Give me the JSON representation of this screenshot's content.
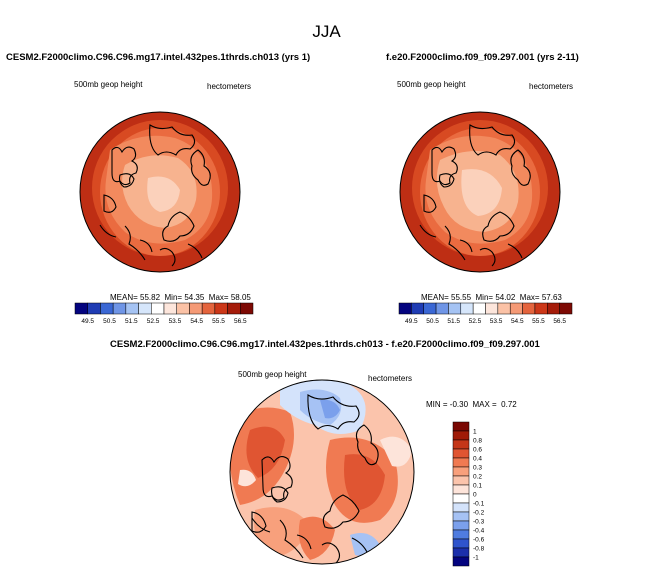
{
  "main_title": "JJA",
  "colors": {
    "abs_scale": [
      "#04047f",
      "#1f3cb4",
      "#3a67d4",
      "#6f95e6",
      "#a5c3f3",
      "#d6e6fb",
      "#ffffff",
      "#fde6dc",
      "#fbc2a6",
      "#f59a76",
      "#e4643d",
      "#cc3718",
      "#a51c0a",
      "#7d0a04"
    ],
    "diff_scale": [
      "#04047f",
      "#1b2fab",
      "#2f54cc",
      "#4f7ce0",
      "#7ba0ec",
      "#a6c2f4",
      "#d4e3fb",
      "#ffffff",
      "#fde4da",
      "#fbc4ac",
      "#f8a07c",
      "#f07a52",
      "#e05532",
      "#c43618",
      "#a01b08",
      "#7a0803"
    ]
  },
  "panels": [
    {
      "title": "CESM2.F2000climo.C96.C96.mg17.intel.432pes.1thrds.ch013 (yrs 1)",
      "left_label": "500mb geop height",
      "right_label": "hectometers",
      "stats": {
        "mean_label": "MEAN=",
        "mean": "55.82",
        "min_label": "Min=",
        "min": "54.35",
        "max_label": "Max=",
        "max": "58.05"
      },
      "colorbar_ticks": [
        "49.5",
        "50.5",
        "51.5",
        "52.5",
        "53.5",
        "54.5",
        "55.5",
        "56.5"
      ]
    },
    {
      "title": "f.e20.F2000climo.f09_f09.297.001 (yrs 2-11)",
      "left_label": "500mb geop height",
      "right_label": "hectometers",
      "stats": {
        "mean_label": "MEAN=",
        "mean": "55.55",
        "min_label": "Min=",
        "min": "54.02",
        "max_label": "Max=",
        "max": "57.63"
      },
      "colorbar_ticks": [
        "49.5",
        "50.5",
        "51.5",
        "52.5",
        "53.5",
        "54.5",
        "55.5",
        "56.5"
      ]
    },
    {
      "title": "CESM2.F2000climo.C96.C96.mg17.intel.432pes.1thrds.ch013 - f.e20.F2000climo.f09_f09.297.001",
      "left_label": "500mb geop height",
      "right_label": "hectometers",
      "stats": {
        "min_label": "MIN =",
        "min": "-0.30",
        "max_label": "MAX =",
        "max": "0.72"
      },
      "colorbar_ticks": [
        "1",
        "0.8",
        "0.6",
        "0.4",
        "0.3",
        "0.2",
        "0.1",
        "0",
        "-0.1",
        "-0.2",
        "-0.3",
        "-0.4",
        "-0.6",
        "-0.8",
        "-1"
      ]
    }
  ],
  "chart_data": [
    {
      "type": "heatmap",
      "title": "CESM2.F2000climo.C96.C96.mg17.intel.432pes.1thrds.ch013 (yrs 1)",
      "projection": "north polar stereographic",
      "variable": "500mb geop height",
      "units": "hectometers",
      "mean": 55.82,
      "min": 54.35,
      "max": 58.05,
      "colorbar_levels": [
        49.5,
        50.5,
        51.5,
        52.5,
        53.5,
        54.5,
        55.5,
        56.5
      ]
    },
    {
      "type": "heatmap",
      "title": "f.e20.F2000climo.f09_f09.297.001 (yrs 2-11)",
      "projection": "north polar stereographic",
      "variable": "500mb geop height",
      "units": "hectometers",
      "mean": 55.55,
      "min": 54.02,
      "max": 57.63,
      "colorbar_levels": [
        49.5,
        50.5,
        51.5,
        52.5,
        53.5,
        54.5,
        55.5,
        56.5
      ]
    },
    {
      "type": "heatmap",
      "title": "CESM2.F2000climo.C96.C96.mg17.intel.432pes.1thrds.ch013 - f.e20.F2000climo.f09_f09.297.001",
      "projection": "north polar stereographic",
      "variable": "500mb geop height",
      "units": "hectometers",
      "min": -0.3,
      "max": 0.72,
      "colorbar_levels": [
        -1,
        -0.8,
        -0.6,
        -0.4,
        -0.3,
        -0.2,
        -0.1,
        0,
        0.1,
        0.2,
        0.3,
        0.4,
        0.6,
        0.8,
        1
      ]
    }
  ]
}
